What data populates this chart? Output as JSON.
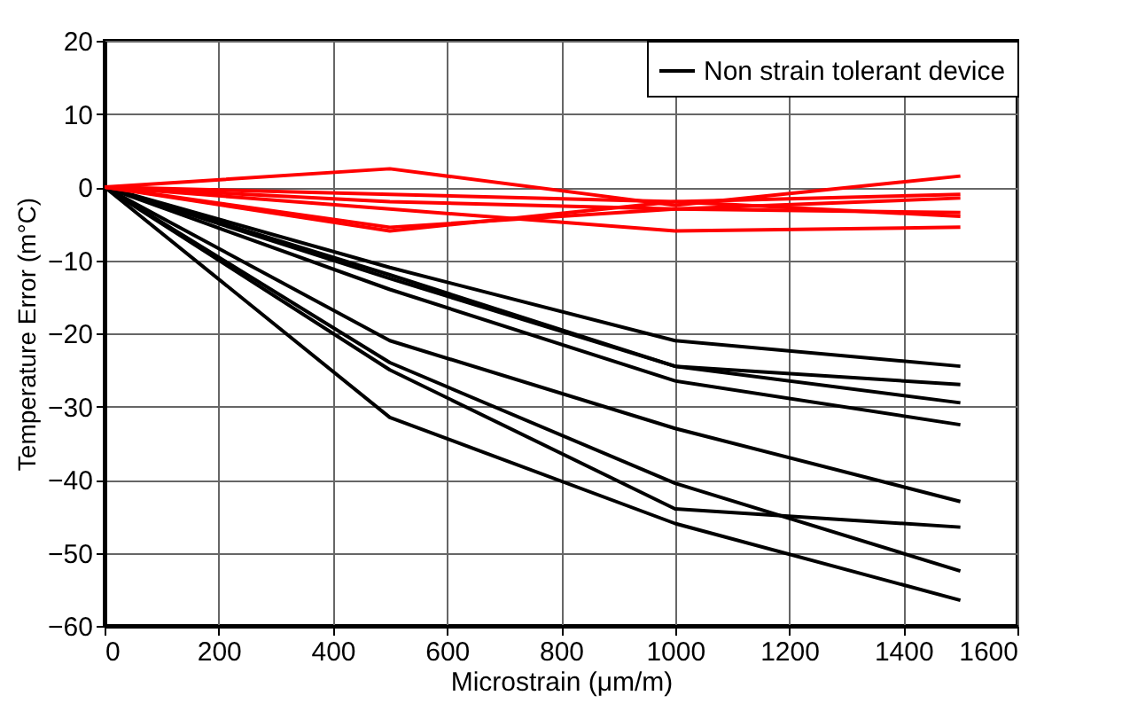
{
  "chart_data": {
    "type": "line",
    "xlabel": "Microstrain (μm/m)",
    "ylabel": "Temperature Error (m°C)",
    "x": [
      0,
      500,
      1000,
      1500
    ],
    "series": [
      {
        "name": "Non strain tolerant device",
        "color": "#000000",
        "values": [
          0,
          -11,
          -21,
          -24.5
        ]
      },
      {
        "color": "#000000",
        "values": [
          0,
          -12,
          -24.5,
          -27
        ]
      },
      {
        "color": "#000000",
        "values": [
          0,
          -12.5,
          -24.5,
          -29.5
        ]
      },
      {
        "color": "#000000",
        "values": [
          0,
          -14,
          -26.5,
          -32.5
        ]
      },
      {
        "color": "#000000",
        "values": [
          0,
          -21,
          -33,
          -43
        ]
      },
      {
        "color": "#000000",
        "values": [
          0,
          -24,
          -40.5,
          -52.5
        ]
      },
      {
        "color": "#000000",
        "values": [
          0,
          -25,
          -44,
          -46.5
        ]
      },
      {
        "color": "#000000",
        "values": [
          0,
          -31.5,
          -46,
          -56.5
        ]
      },
      {
        "color": "#ff0000",
        "values": [
          0,
          2.5,
          -2.5,
          1.5
        ]
      },
      {
        "color": "#ff0000",
        "values": [
          0,
          -1,
          -2,
          -1
        ]
      },
      {
        "color": "#ff0000",
        "values": [
          0,
          -2,
          -3,
          -1.5
        ]
      },
      {
        "color": "#ff0000",
        "values": [
          0,
          -6,
          -2,
          -4
        ]
      },
      {
        "color": "#ff0000",
        "values": [
          0,
          -3,
          -6,
          -5.5
        ]
      },
      {
        "color": "#ff0000",
        "values": [
          0,
          -5.5,
          -3,
          -3.5
        ]
      }
    ],
    "xlim": [
      0,
      1600
    ],
    "xticks": [
      0,
      200,
      400,
      600,
      800,
      1000,
      1200,
      1400,
      1600
    ],
    "ylim": [
      -60,
      20
    ],
    "yticks": [
      -60,
      -50,
      -40,
      -30,
      -20,
      -10,
      0,
      10,
      20
    ],
    "grid": true,
    "legend": "top right",
    "line_style": "solid",
    "marker": "none"
  }
}
